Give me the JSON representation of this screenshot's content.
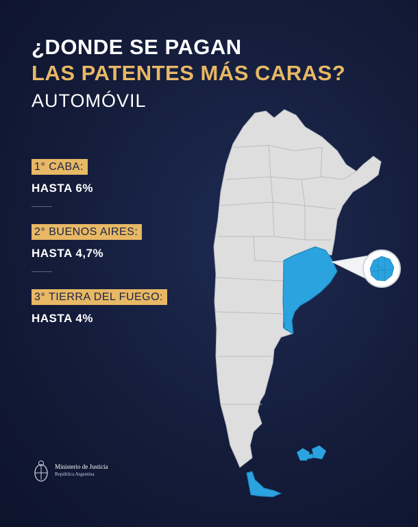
{
  "title": {
    "line1": "¿DONDE SE PAGAN",
    "line2": "LAS PATENTES MÁS CARAS?",
    "line3": "AUTOMÓVIL"
  },
  "ranking": [
    {
      "label": "1° CABA:",
      "value": "HASTA 6%"
    },
    {
      "label": "2° BUENOS AIRES:",
      "value": "HASTA 4,7%"
    },
    {
      "label": "3° TIERRA DEL FUEGO:",
      "value": "HASTA 4%"
    }
  ],
  "colors": {
    "background": "#141c3a",
    "accent_gold": "#e8b865",
    "highlight_blue": "#2aa3df",
    "map_gray": "#dedede"
  },
  "logo": {
    "line1": "Ministerio de Justicia",
    "line2": "República Argentina",
    "icon": "argentina-coat-of-arms-icon"
  }
}
